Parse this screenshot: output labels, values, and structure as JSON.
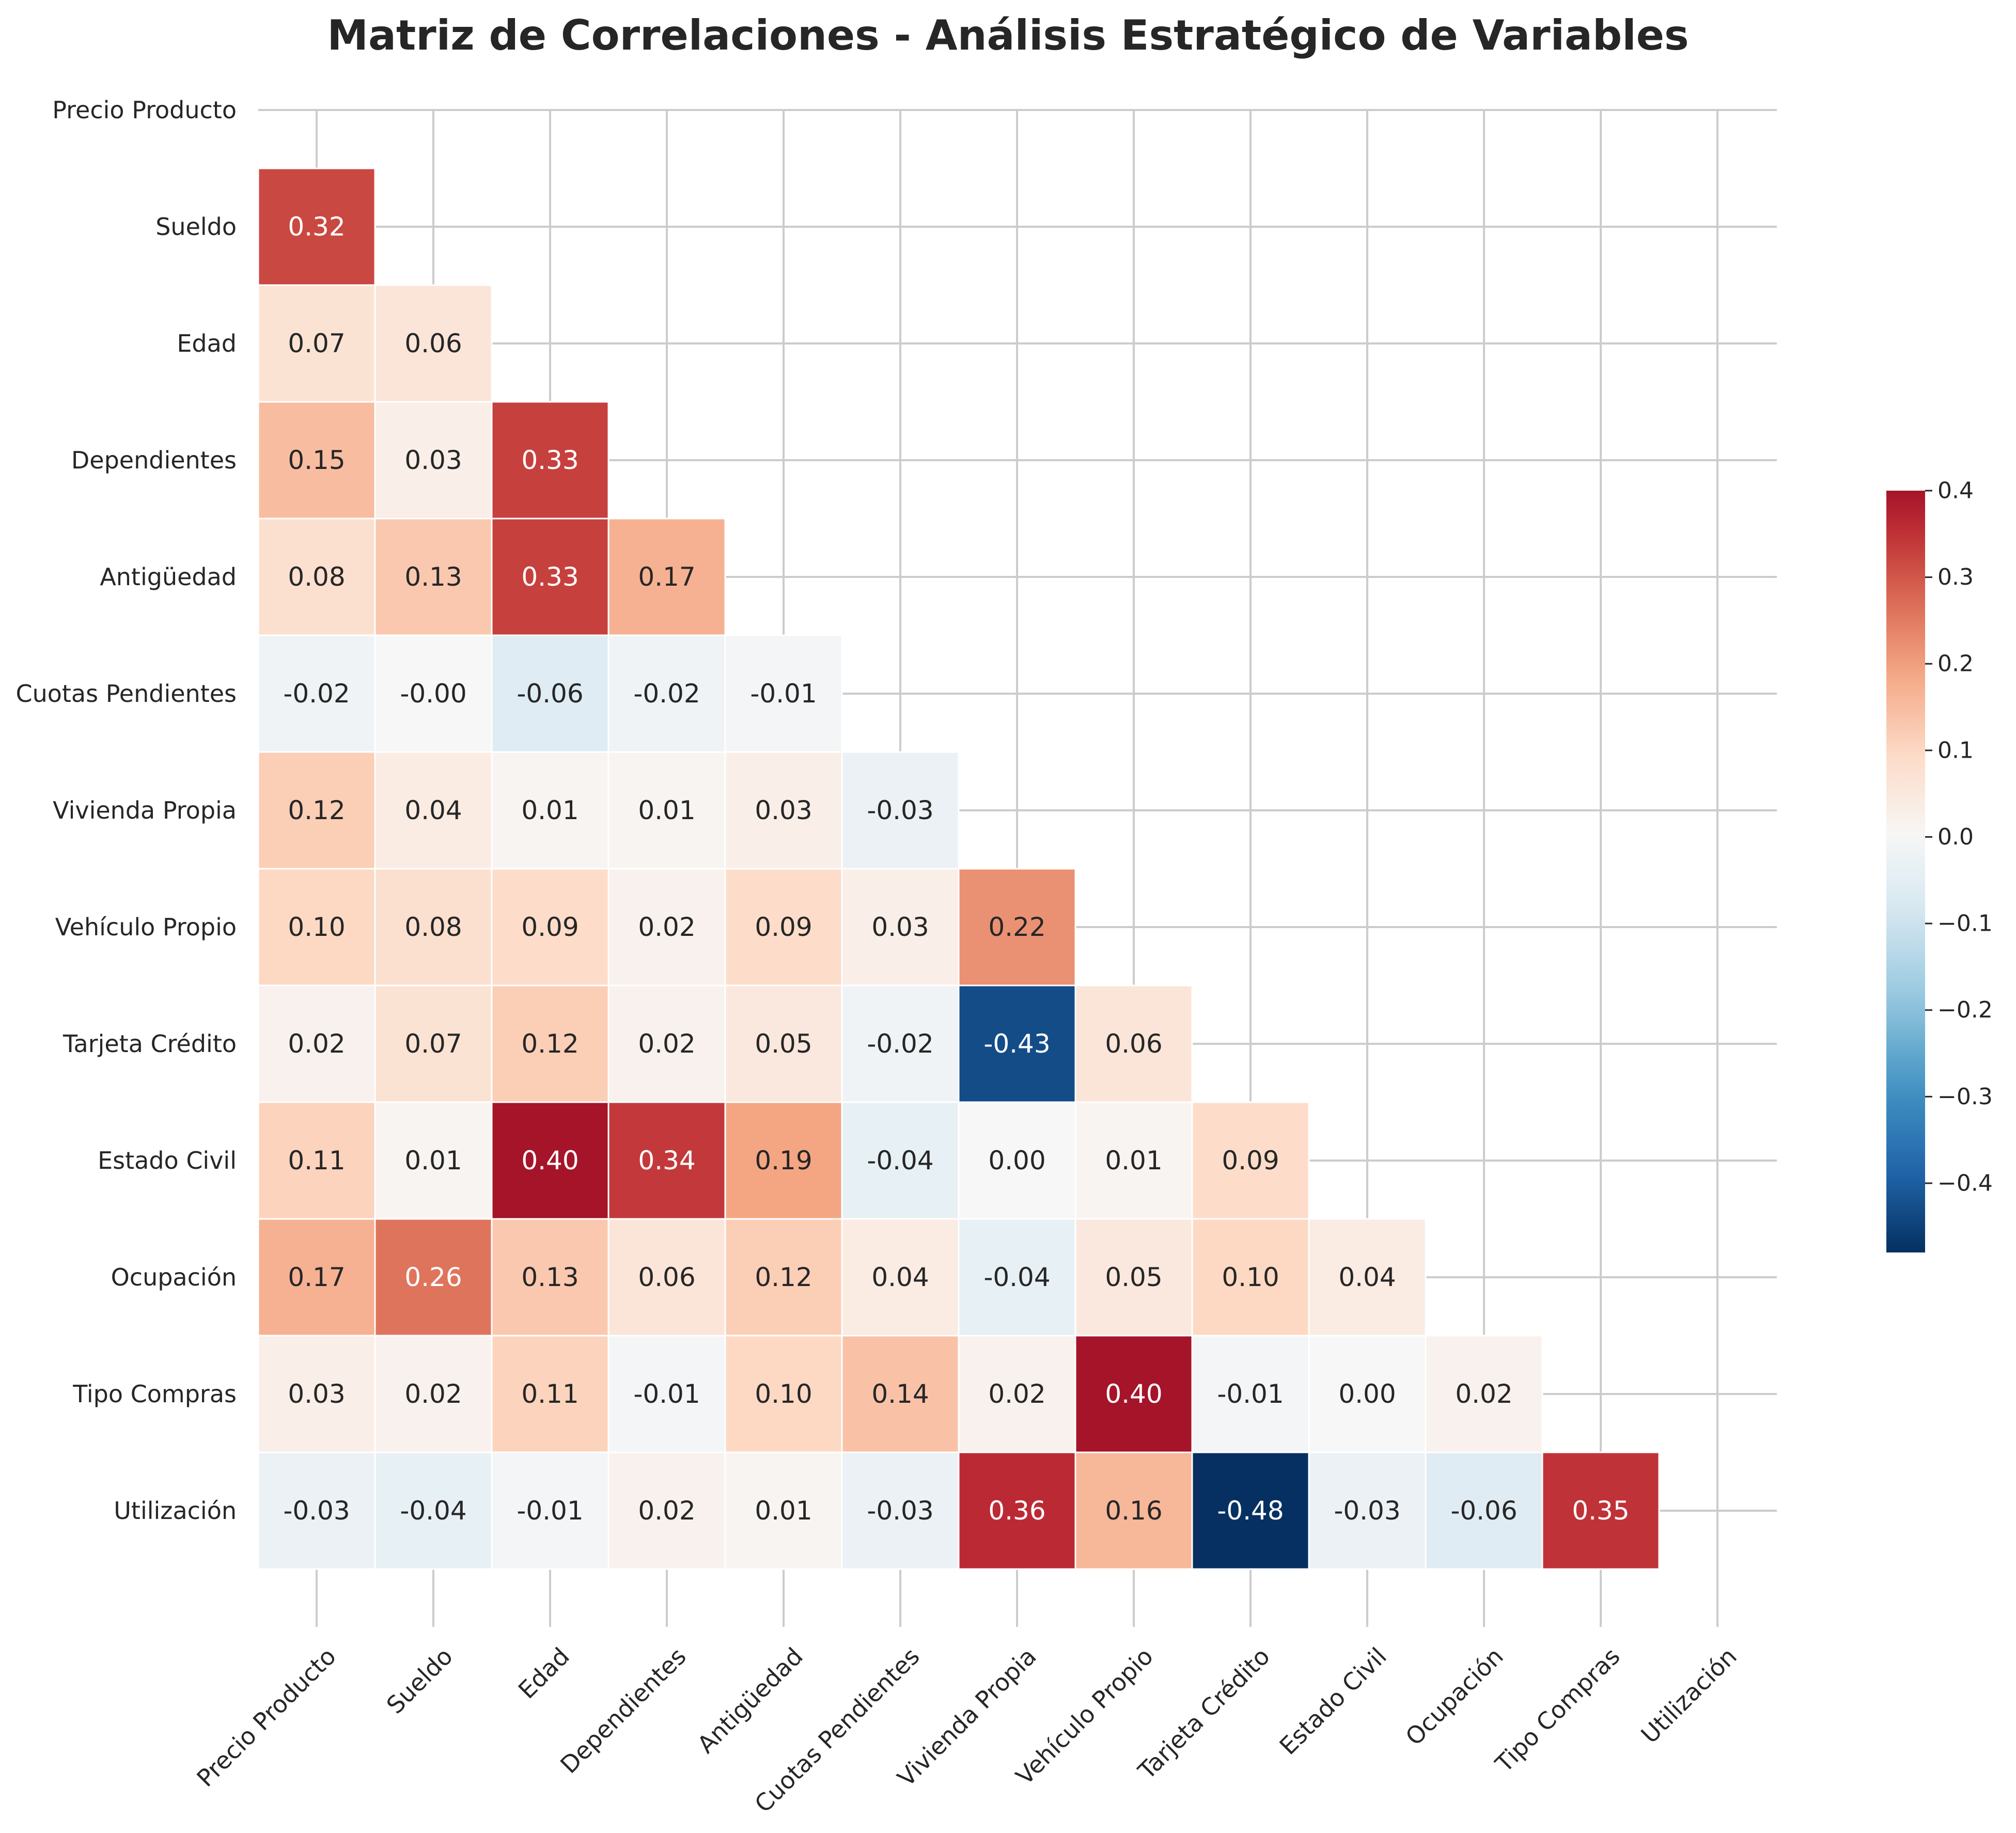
{
  "chart_data": {
    "type": "heatmap",
    "title": "Matriz de Correlaciones - Análisis Estratégico de Variables",
    "variables": [
      "Precio Producto",
      "Sueldo",
      "Edad",
      "Dependientes",
      "Antigüedad",
      "Cuotas Pendientes",
      "Vivienda Propia",
      "Vehículo Propio",
      "Tarjeta Crédito",
      "Estado Civil",
      "Ocupación",
      "Tipo Compras",
      "Utilización"
    ],
    "lower_triangle": [
      [],
      [
        "0.32"
      ],
      [
        "0.07",
        "0.06"
      ],
      [
        "0.15",
        "0.03",
        "0.33"
      ],
      [
        "0.08",
        "0.13",
        "0.33",
        "0.17"
      ],
      [
        "-0.02",
        "-0.00",
        "-0.06",
        "-0.02",
        "-0.01"
      ],
      [
        "0.12",
        "0.04",
        "0.01",
        "0.01",
        "0.03",
        "-0.03"
      ],
      [
        "0.10",
        "0.08",
        "0.09",
        "0.02",
        "0.09",
        "0.03",
        "0.22"
      ],
      [
        "0.02",
        "0.07",
        "0.12",
        "0.02",
        "0.05",
        "-0.02",
        "-0.43",
        "0.06"
      ],
      [
        "0.11",
        "0.01",
        "0.40",
        "0.34",
        "0.19",
        "-0.04",
        "0.00",
        "0.01",
        "0.09"
      ],
      [
        "0.17",
        "0.26",
        "0.13",
        "0.06",
        "0.12",
        "0.04",
        "-0.04",
        "0.05",
        "0.10",
        "0.04"
      ],
      [
        "0.03",
        "0.02",
        "0.11",
        "-0.01",
        "0.10",
        "0.14",
        "0.02",
        "0.40",
        "-0.01",
        "0.00",
        "0.02"
      ],
      [
        "-0.03",
        "-0.04",
        "-0.01",
        "0.02",
        "0.01",
        "-0.03",
        "0.36",
        "0.16",
        "-0.48",
        "-0.03",
        "-0.06",
        "0.35"
      ]
    ],
    "colormap": "RdBu_r",
    "vmin": -0.48,
    "vmax": 0.4,
    "colorbar_ticks": [
      "0.4",
      "0.3",
      "0.2",
      "0.1",
      "0.0",
      "−0.1",
      "−0.2",
      "−0.3",
      "−0.4"
    ],
    "colorbar_tick_values": [
      0.4,
      0.3,
      0.2,
      0.1,
      0.0,
      -0.1,
      -0.2,
      -0.3,
      -0.4
    ],
    "grid": true,
    "legend": "colorbar right"
  }
}
